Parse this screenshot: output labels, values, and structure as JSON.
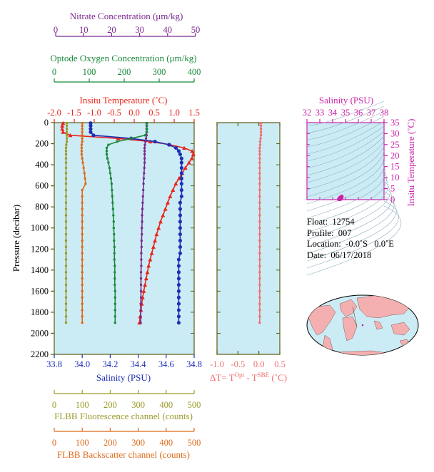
{
  "colors": {
    "background": "#ccecf5",
    "nitrate": "#7a2a8f",
    "oxygen": "#1a8a3a",
    "temperature": "#e8261a",
    "salinity": "#1f2fb5",
    "fluorescence": "#9a9a2a",
    "backscatter": "#dd6a1a",
    "delta_t": "#ef6f6f",
    "ts_axis": "#cc22aa",
    "axis_olive": "#5b5b12"
  },
  "axes": {
    "nitrate": {
      "label": "Nitrate Concentration (μm/kg)",
      "ticks": [
        "0",
        "10",
        "20",
        "30",
        "40",
        "50"
      ]
    },
    "oxygen": {
      "label": "Optode Oxygen Concentration (μm/kg)",
      "ticks": [
        "0",
        "100",
        "200",
        "300",
        "400"
      ]
    },
    "temperature": {
      "label": "Insitu Temperature (˚C)",
      "ticks": [
        "-2.0",
        "-1.5",
        "-1.0",
        "-0.5",
        "0.0",
        "0.5",
        "1.0",
        "1.5"
      ]
    },
    "pressure": {
      "label": "Pressure (decibar)",
      "ticks": [
        "0",
        "200",
        "400",
        "600",
        "800",
        "1000",
        "1200",
        "1400",
        "1600",
        "1800",
        "2000",
        "2200"
      ]
    },
    "salinity": {
      "label": "Salinity (PSU)",
      "ticks": [
        "33.8",
        "34.0",
        "34.2",
        "34.4",
        "34.6",
        "34.8"
      ]
    },
    "delta_t": {
      "label_prefix": "ΔT= T",
      "sup1": "Opt",
      "label_mid": " - T",
      "sup2": "SBE",
      "label_suffix": " (˚C)",
      "ticks": [
        "-1.0",
        "-0.5",
        "0.0",
        "0.5"
      ]
    },
    "fluorescence": {
      "label": "FLBB Fluorescence channel (counts)",
      "ticks": [
        "0",
        "100",
        "200",
        "300",
        "400",
        "500"
      ]
    },
    "backscatter": {
      "label": "FLBB Backscatter channel (counts)",
      "ticks": [
        "0",
        "100",
        "200",
        "300",
        "400",
        "500"
      ]
    },
    "ts_salinity": {
      "label": "Salinity (PSU)",
      "ticks": [
        "32",
        "33",
        "34",
        "35",
        "36",
        "37",
        "38"
      ]
    },
    "ts_temperature": {
      "label": "Insitu Temperature (˚C)",
      "ticks": [
        "0",
        "5",
        "10",
        "15",
        "20",
        "25",
        "30",
        "35"
      ]
    }
  },
  "info": {
    "float": "Float:  12754",
    "profile": "Profile:  007",
    "location": "Location:  -0.0˚S   0.0˚E",
    "date": "Date:  06/17/2018"
  },
  "chart_data": {
    "type": "line",
    "pressure": [
      5,
      30,
      60,
      90,
      120,
      150,
      180,
      210,
      240,
      270,
      300,
      340,
      380,
      430,
      480,
      530,
      580,
      640,
      700,
      760,
      820,
      880,
      940,
      1000,
      1060,
      1120,
      1180,
      1240,
      1300,
      1360,
      1420,
      1480,
      1540,
      1600,
      1660,
      1720,
      1780,
      1840,
      1900
    ],
    "series": [
      {
        "key": "temperature",
        "unit": "˚C",
        "range": [
          -2.0,
          1.5
        ],
        "values": [
          -1.78,
          -1.8,
          -1.8,
          -1.78,
          -1.6,
          -0.4,
          0.4,
          0.9,
          1.25,
          1.45,
          1.48,
          1.44,
          1.37,
          1.28,
          1.2,
          1.12,
          1.04,
          0.97,
          0.9,
          0.84,
          0.78,
          0.72,
          0.66,
          0.61,
          0.56,
          0.52,
          0.48,
          0.44,
          0.4,
          0.36,
          0.33,
          0.3,
          0.27,
          0.24,
          0.21,
          0.19,
          0.17,
          0.15,
          0.13
        ]
      },
      {
        "key": "salinity",
        "unit": "PSU",
        "range": [
          33.8,
          34.8
        ],
        "values": [
          34.06,
          34.06,
          34.06,
          34.06,
          34.08,
          34.35,
          34.52,
          34.62,
          34.67,
          34.69,
          34.7,
          34.71,
          34.71,
          34.71,
          34.71,
          34.71,
          34.71,
          34.71,
          34.71,
          34.7,
          34.7,
          34.7,
          34.7,
          34.7,
          34.7,
          34.7,
          34.7,
          34.7,
          34.69,
          34.69,
          34.69,
          34.69,
          34.69,
          34.69,
          34.69,
          34.69,
          34.69,
          34.69,
          34.69
        ]
      },
      {
        "key": "nitrate",
        "unit": "μm/kg",
        "range": [
          0,
          50
        ],
        "values": [
          33,
          33,
          33,
          33,
          33,
          32.8,
          32.6,
          32.4,
          32.3,
          32.3,
          32.3,
          32.3,
          32.3,
          32.2,
          32.1,
          32.0,
          31.9,
          31.8,
          31.7,
          31.6,
          31.5,
          31.4,
          31.4,
          31.3,
          31.3,
          31.2,
          31.2,
          31.1,
          31.1,
          31.1,
          31.0,
          31.0,
          31.0,
          31.0,
          31.0,
          30.9,
          30.9,
          30.9,
          30.9
        ]
      },
      {
        "key": "oxygen",
        "unit": "μm/kg",
        "range": [
          0,
          400
        ],
        "values": [
          265,
          265,
          265,
          265,
          260,
          220,
          180,
          155,
          150,
          150,
          150,
          152,
          155,
          158,
          160,
          162,
          164,
          165,
          166,
          167,
          168,
          169,
          170,
          170,
          171,
          171,
          172,
          172,
          172,
          173,
          173,
          173,
          173,
          174,
          174,
          174,
          174,
          174,
          174
        ]
      },
      {
        "key": "fluorescence",
        "unit": "counts",
        "range": [
          0,
          500
        ],
        "values": [
          45,
          45,
          45,
          45,
          45,
          45,
          45,
          43,
          42,
          42,
          42,
          42,
          42,
          42,
          42,
          42,
          42,
          42,
          42,
          42,
          42,
          42,
          42,
          42,
          42,
          42,
          42,
          42,
          42,
          42,
          42,
          42,
          42,
          42,
          42,
          42,
          42,
          42,
          42
        ]
      },
      {
        "key": "backscatter",
        "unit": "counts",
        "range": [
          0,
          500
        ],
        "values": [
          100,
          100,
          100,
          100,
          100,
          100,
          100,
          98,
          98,
          98,
          98,
          100,
          102,
          105,
          108,
          110,
          112,
          100,
          100,
          100,
          100,
          100,
          100,
          100,
          100,
          100,
          100,
          100,
          100,
          100,
          100,
          100,
          100,
          100,
          100,
          100,
          100,
          100,
          100
        ]
      },
      {
        "key": "delta_t",
        "unit": "˚C",
        "range": [
          -1.0,
          0.5
        ],
        "values": [
          0.05,
          0.05,
          0.05,
          0.05,
          0.05,
          0.04,
          0.03,
          0.03,
          0.02,
          0.02,
          0.02,
          0.02,
          0.02,
          0.02,
          0.02,
          0.02,
          0.02,
          0.02,
          0.02,
          0.02,
          0.02,
          0.02,
          0.02,
          0.02,
          0.02,
          0.02,
          0.02,
          0.02,
          0.02,
          0.02,
          0.02,
          0.02,
          0.02,
          0.02,
          0.02,
          0.02,
          0.02,
          0.02,
          0.02
        ]
      }
    ],
    "pressure_range": [
      0,
      2200
    ],
    "ts_diagram": {
      "salinity_range": [
        32,
        38
      ],
      "temperature_range": [
        0,
        35
      ],
      "points": [
        [
          34.7,
          1.4
        ],
        [
          34.68,
          1.0
        ],
        [
          34.65,
          0.6
        ],
        [
          34.62,
          0.3
        ],
        [
          34.58,
          0.9
        ],
        [
          34.55,
          0.4
        ],
        [
          34.5,
          0.2
        ]
      ]
    }
  }
}
